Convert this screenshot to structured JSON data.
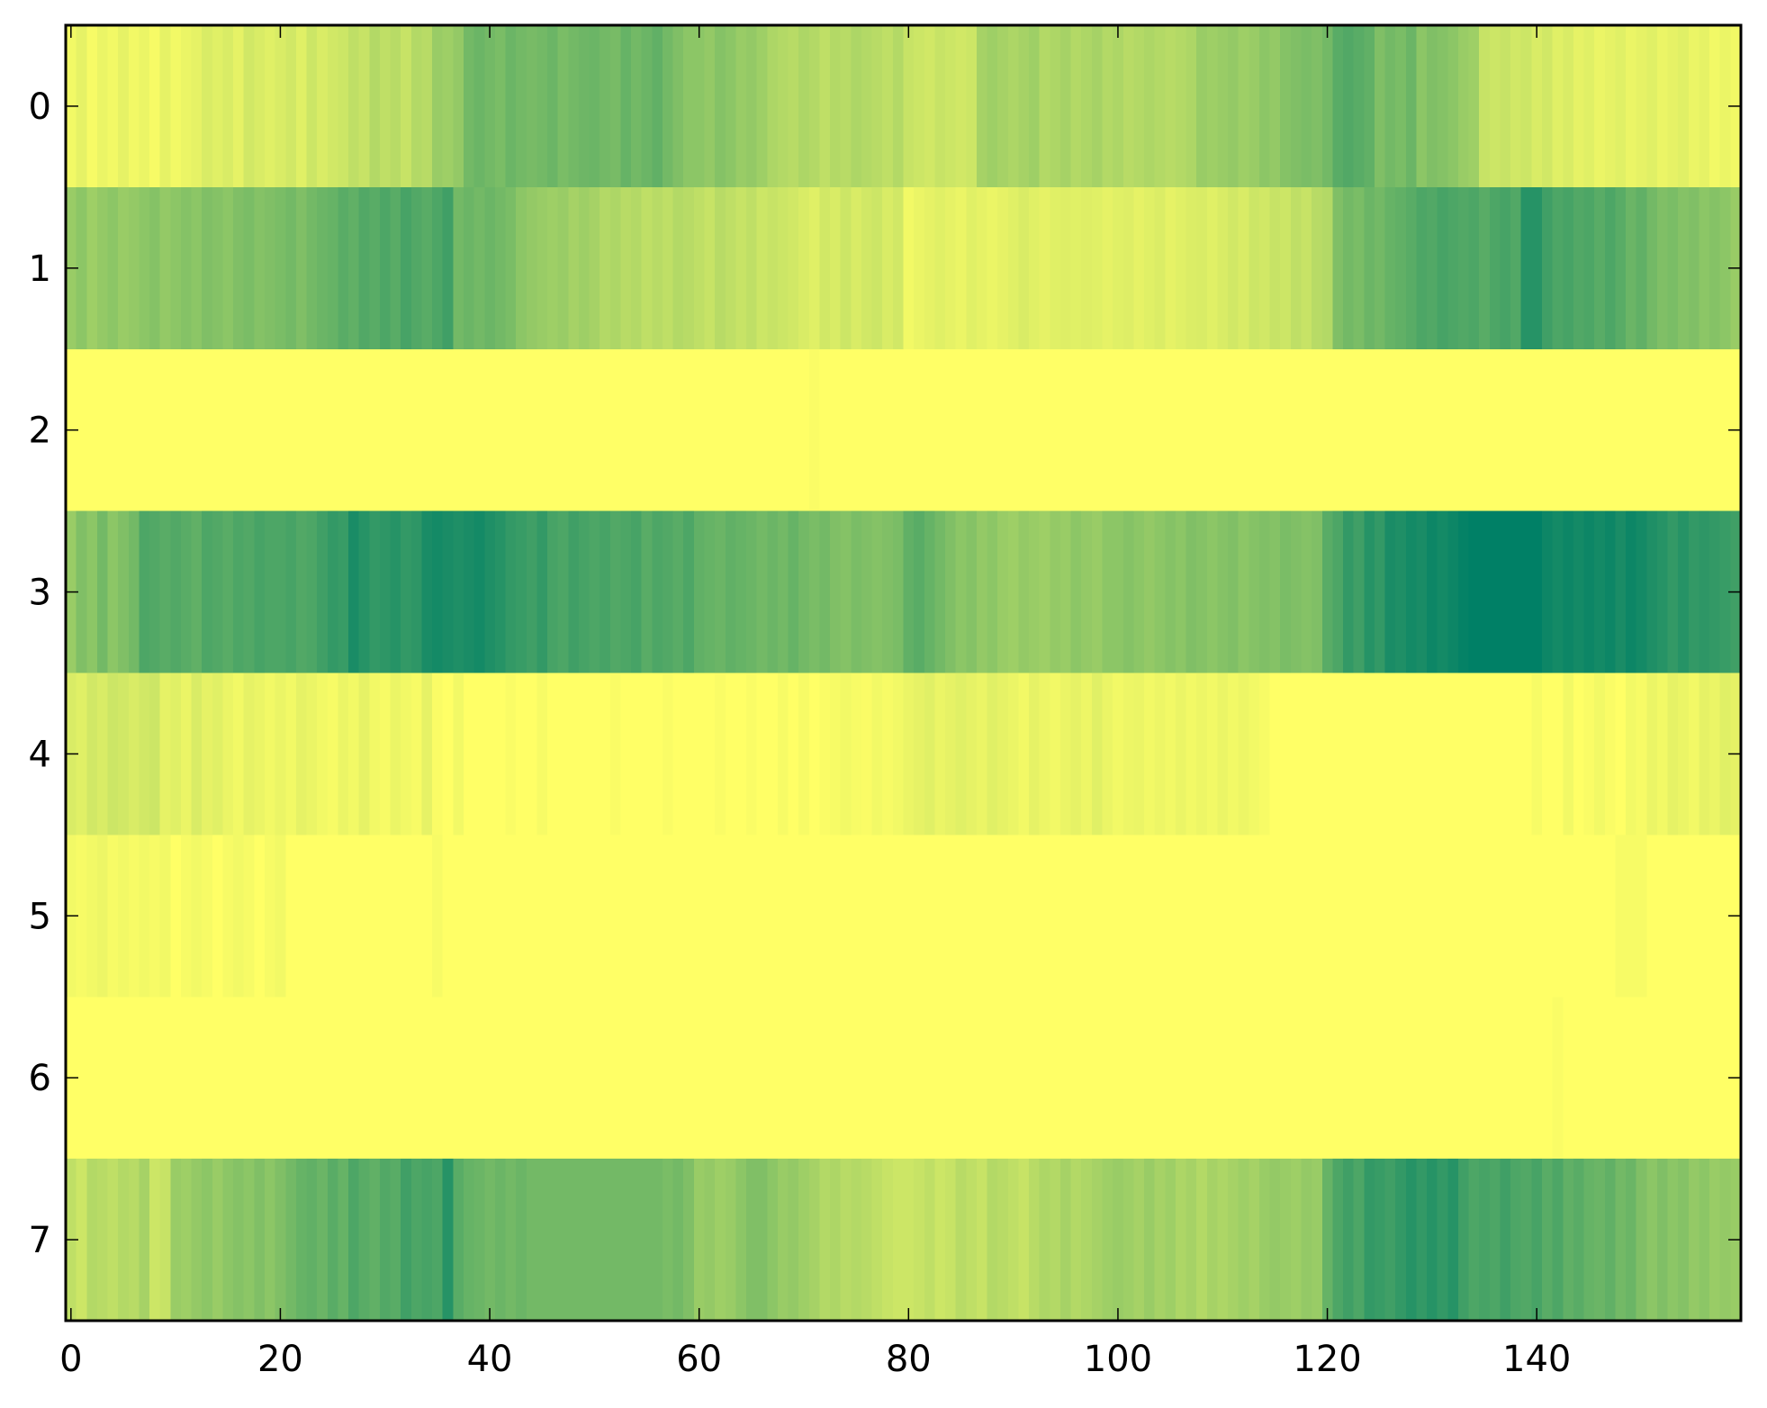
{
  "chart_data": {
    "type": "heatmap",
    "colormap": "summer",
    "color_low": "#008066",
    "color_high": "#ffff66",
    "title": "",
    "xlabel": "",
    "ylabel": "",
    "xlim": [
      -0.5,
      159.5
    ],
    "ylim": [
      7.5,
      -0.5
    ],
    "vmin": 0,
    "vmax": 1,
    "grid": false,
    "x_ticks": [
      0,
      20,
      40,
      60,
      80,
      100,
      120,
      140
    ],
    "x_tick_labels": [
      "0",
      "20",
      "40",
      "60",
      "80",
      "100",
      "120",
      "140"
    ],
    "y_ticks": [
      0,
      1,
      2,
      3,
      4,
      5,
      6,
      7
    ],
    "y_tick_labels": [
      "0",
      "1",
      "2",
      "3",
      "4",
      "5",
      "6",
      "7"
    ],
    "rows": [
      [
        0.95,
        0.9,
        0.97,
        0.92,
        0.95,
        0.9,
        0.95,
        0.92,
        0.97,
        0.9,
        0.95,
        0.92,
        0.9,
        0.85,
        0.88,
        0.85,
        0.9,
        0.82,
        0.85,
        0.88,
        0.85,
        0.82,
        0.88,
        0.8,
        0.85,
        0.82,
        0.8,
        0.75,
        0.78,
        0.7,
        0.75,
        0.72,
        0.78,
        0.7,
        0.72,
        0.6,
        0.62,
        0.58,
        0.45,
        0.42,
        0.45,
        0.48,
        0.42,
        0.45,
        0.47,
        0.45,
        0.42,
        0.48,
        0.45,
        0.43,
        0.42,
        0.45,
        0.47,
        0.4,
        0.45,
        0.42,
        0.38,
        0.45,
        0.5,
        0.55,
        0.55,
        0.58,
        0.52,
        0.55,
        0.6,
        0.58,
        0.62,
        0.68,
        0.7,
        0.72,
        0.68,
        0.7,
        0.75,
        0.7,
        0.72,
        0.68,
        0.7,
        0.72,
        0.75,
        0.7,
        0.78,
        0.8,
        0.82,
        0.78,
        0.8,
        0.82,
        0.8,
        0.65,
        0.62,
        0.65,
        0.68,
        0.65,
        0.62,
        0.7,
        0.68,
        0.65,
        0.7,
        0.68,
        0.65,
        0.7,
        0.68,
        0.72,
        0.7,
        0.68,
        0.7,
        0.72,
        0.7,
        0.68,
        0.6,
        0.62,
        0.6,
        0.58,
        0.62,
        0.6,
        0.55,
        0.58,
        0.52,
        0.5,
        0.48,
        0.5,
        0.45,
        0.35,
        0.32,
        0.35,
        0.38,
        0.5,
        0.45,
        0.48,
        0.42,
        0.55,
        0.5,
        0.52,
        0.55,
        0.6,
        0.62,
        0.78,
        0.8,
        0.78,
        0.82,
        0.8,
        0.85,
        0.82,
        0.88,
        0.85,
        0.9,
        0.88,
        0.92,
        0.9,
        0.88,
        0.92,
        0.9,
        0.88,
        0.92,
        0.9,
        0.88,
        0.92,
        0.9,
        0.95,
        0.92,
        0.95
      ],
      [
        0.6,
        0.55,
        0.62,
        0.58,
        0.55,
        0.6,
        0.58,
        0.55,
        0.52,
        0.58,
        0.55,
        0.52,
        0.55,
        0.5,
        0.52,
        0.55,
        0.5,
        0.48,
        0.52,
        0.5,
        0.48,
        0.45,
        0.5,
        0.45,
        0.42,
        0.4,
        0.35,
        0.38,
        0.32,
        0.35,
        0.3,
        0.35,
        0.28,
        0.32,
        0.35,
        0.3,
        0.25,
        0.45,
        0.42,
        0.45,
        0.42,
        0.45,
        0.48,
        0.55,
        0.58,
        0.6,
        0.62,
        0.6,
        0.65,
        0.62,
        0.65,
        0.7,
        0.68,
        0.72,
        0.7,
        0.75,
        0.72,
        0.75,
        0.7,
        0.72,
        0.75,
        0.78,
        0.72,
        0.75,
        0.78,
        0.75,
        0.8,
        0.78,
        0.8,
        0.82,
        0.85,
        0.88,
        0.82,
        0.85,
        0.8,
        0.85,
        0.82,
        0.8,
        0.85,
        0.82,
        0.95,
        0.92,
        0.9,
        0.88,
        0.9,
        0.92,
        0.88,
        0.9,
        0.92,
        0.9,
        0.88,
        0.85,
        0.88,
        0.9,
        0.88,
        0.87,
        0.88,
        0.87,
        0.88,
        0.9,
        0.88,
        0.87,
        0.9,
        0.88,
        0.86,
        0.9,
        0.88,
        0.86,
        0.85,
        0.88,
        0.85,
        0.82,
        0.85,
        0.8,
        0.82,
        0.78,
        0.8,
        0.75,
        0.78,
        0.72,
        0.7,
        0.5,
        0.45,
        0.48,
        0.42,
        0.45,
        0.4,
        0.38,
        0.35,
        0.3,
        0.32,
        0.28,
        0.3,
        0.32,
        0.3,
        0.35,
        0.3,
        0.28,
        0.32,
        0.15,
        0.15,
        0.25,
        0.3,
        0.28,
        0.32,
        0.3,
        0.35,
        0.3,
        0.35,
        0.42,
        0.38,
        0.45,
        0.5,
        0.48,
        0.52,
        0.5,
        0.55,
        0.52,
        0.55,
        0.6
      ],
      [
        1,
        1,
        1,
        1,
        1,
        1,
        1,
        1,
        1,
        1,
        1,
        1,
        1,
        1,
        1,
        1,
        1,
        1,
        1,
        1,
        1,
        1,
        1,
        1,
        1,
        1,
        1,
        1,
        1,
        1,
        1,
        1,
        1,
        1,
        1,
        1,
        1,
        1,
        1,
        1,
        1,
        1,
        1,
        1,
        1,
        1,
        1,
        1,
        1,
        1,
        1,
        1,
        1,
        1,
        1,
        1,
        1,
        1,
        1,
        1,
        1,
        1,
        1,
        1,
        1,
        1,
        1,
        1,
        1,
        1,
        1,
        0.98,
        1,
        1,
        1,
        1,
        1,
        1,
        1,
        1,
        1,
        1,
        1,
        1,
        1,
        1,
        1,
        1,
        1,
        1,
        1,
        1,
        1,
        1,
        1,
        1,
        1,
        1,
        1,
        1,
        1,
        1,
        1,
        1,
        1,
        1,
        1,
        1,
        1,
        1,
        1,
        1,
        1,
        1,
        1,
        1,
        1,
        1,
        1,
        1,
        1,
        1,
        1,
        1,
        1,
        1,
        1,
        1,
        1,
        1,
        1,
        1,
        1,
        1,
        1,
        1,
        1,
        1,
        1,
        1,
        1,
        1,
        1,
        1,
        1,
        1,
        1,
        1,
        1,
        1,
        1,
        1,
        1,
        1,
        1,
        1,
        1,
        1,
        1,
        1
      ],
      [
        0.6,
        0.5,
        0.55,
        0.45,
        0.55,
        0.5,
        0.45,
        0.3,
        0.32,
        0.35,
        0.32,
        0.35,
        0.38,
        0.3,
        0.32,
        0.35,
        0.3,
        0.32,
        0.28,
        0.3,
        0.3,
        0.28,
        0.32,
        0.3,
        0.25,
        0.2,
        0.22,
        0.1,
        0.15,
        0.2,
        0.18,
        0.15,
        0.2,
        0.18,
        0.1,
        0.08,
        0.1,
        0.12,
        0.1,
        0.08,
        0.12,
        0.15,
        0.2,
        0.22,
        0.25,
        0.2,
        0.28,
        0.3,
        0.25,
        0.28,
        0.3,
        0.28,
        0.32,
        0.3,
        0.28,
        0.35,
        0.3,
        0.32,
        0.35,
        0.3,
        0.38,
        0.4,
        0.42,
        0.38,
        0.4,
        0.42,
        0.45,
        0.42,
        0.45,
        0.4,
        0.45,
        0.48,
        0.45,
        0.5,
        0.52,
        0.48,
        0.5,
        0.52,
        0.5,
        0.48,
        0.38,
        0.35,
        0.4,
        0.45,
        0.5,
        0.55,
        0.52,
        0.58,
        0.55,
        0.6,
        0.62,
        0.58,
        0.6,
        0.62,
        0.58,
        0.6,
        0.55,
        0.58,
        0.6,
        0.55,
        0.55,
        0.52,
        0.55,
        0.58,
        0.55,
        0.52,
        0.55,
        0.5,
        0.52,
        0.55,
        0.52,
        0.5,
        0.55,
        0.52,
        0.5,
        0.52,
        0.48,
        0.5,
        0.52,
        0.5,
        0.35,
        0.3,
        0.2,
        0.25,
        0.15,
        0.2,
        0.1,
        0.12,
        0.08,
        0.1,
        0.05,
        0.08,
        0.05,
        0.02,
        0,
        0,
        0,
        0,
        0,
        0,
        0,
        0.05,
        0.08,
        0.05,
        0.08,
        0.05,
        0.08,
        0.05,
        0.1,
        0.05,
        0.08,
        0.12,
        0.15,
        0.2,
        0.15,
        0.2,
        0.18,
        0.2,
        0.22,
        0.25
      ],
      [
        0.85,
        0.88,
        0.82,
        0.85,
        0.8,
        0.82,
        0.85,
        0.82,
        0.8,
        0.9,
        0.88,
        0.92,
        0.85,
        0.9,
        0.88,
        0.92,
        0.95,
        0.9,
        0.92,
        0.95,
        0.92,
        0.95,
        0.9,
        0.92,
        0.95,
        0.97,
        0.92,
        0.95,
        0.9,
        0.95,
        0.97,
        0.92,
        0.95,
        0.97,
        0.9,
        0.98,
        1,
        0.95,
        1,
        1,
        1,
        1,
        0.98,
        1,
        1,
        0.97,
        1,
        1,
        1,
        1,
        1,
        1,
        0.98,
        1,
        1,
        1,
        1,
        0.98,
        1,
        1,
        1,
        1,
        0.98,
        1,
        1,
        0.98,
        1,
        1,
        0.97,
        1,
        0.97,
        1,
        0.98,
        0.97,
        0.95,
        0.97,
        0.98,
        0.95,
        0.97,
        0.95,
        0.92,
        0.9,
        0.88,
        0.92,
        0.9,
        0.88,
        0.9,
        0.92,
        0.88,
        0.9,
        0.92,
        0.95,
        0.9,
        0.93,
        0.95,
        0.92,
        0.9,
        0.93,
        0.88,
        0.92,
        0.95,
        0.93,
        0.92,
        0.95,
        0.93,
        0.95,
        0.92,
        0.95,
        0.93,
        0.95,
        0.92,
        0.95,
        0.93,
        0.95,
        0.97,
        1,
        1,
        1,
        1,
        1,
        1,
        1,
        1,
        1,
        1,
        1,
        1,
        1,
        1,
        1,
        1,
        1,
        1,
        1,
        1,
        1,
        1,
        1,
        1,
        1,
        0.97,
        1,
        1,
        0.95,
        1,
        0.98,
        0.95,
        0.98,
        1,
        0.95,
        0.97,
        0.92,
        0.95,
        0.9,
        0.92,
        0.95,
        0.9,
        0.92,
        0.88,
        0.9
      ],
      [
        0.95,
        0.97,
        0.95,
        0.93,
        0.97,
        0.95,
        0.97,
        0.95,
        0.97,
        0.95,
        1,
        0.97,
        0.95,
        0.97,
        1,
        0.97,
        0.95,
        0.97,
        1,
        0.97,
        0.95,
        1,
        1,
        1,
        1,
        1,
        1,
        1,
        1,
        1,
        1,
        1,
        1,
        1,
        1,
        0.97,
        1,
        1,
        1,
        1,
        1,
        1,
        1,
        1,
        1,
        1,
        1,
        1,
        1,
        1,
        1,
        1,
        1,
        1,
        1,
        1,
        1,
        1,
        1,
        1,
        1,
        1,
        1,
        1,
        1,
        1,
        1,
        1,
        1,
        1,
        1,
        1,
        1,
        1,
        1,
        1,
        1,
        1,
        1,
        1,
        1,
        1,
        1,
        1,
        1,
        1,
        1,
        1,
        1,
        1,
        1,
        1,
        1,
        1,
        1,
        1,
        1,
        1,
        1,
        1,
        1,
        1,
        1,
        1,
        1,
        1,
        1,
        1,
        1,
        1,
        1,
        1,
        1,
        1,
        1,
        1,
        1,
        1,
        1,
        1,
        1,
        1,
        1,
        1,
        1,
        1,
        1,
        1,
        1,
        1,
        1,
        1,
        1,
        1,
        1,
        1,
        1,
        1,
        1,
        1,
        1,
        1,
        1,
        1,
        1,
        1,
        1,
        1,
        0.97,
        0.97,
        0.97,
        1,
        1,
        1,
        1,
        1,
        1,
        1,
        1,
        1
      ],
      [
        1,
        1,
        1,
        1,
        1,
        1,
        1,
        1,
        1,
        1,
        1,
        1,
        1,
        1,
        1,
        1,
        1,
        1,
        1,
        1,
        1,
        1,
        1,
        1,
        1,
        1,
        1,
        1,
        1,
        1,
        1,
        1,
        1,
        1,
        1,
        1,
        1,
        1,
        1,
        1,
        1,
        1,
        1,
        1,
        1,
        1,
        1,
        1,
        1,
        1,
        1,
        1,
        1,
        1,
        1,
        1,
        1,
        1,
        1,
        1,
        1,
        1,
        1,
        1,
        1,
        1,
        1,
        1,
        1,
        1,
        1,
        1,
        1,
        1,
        1,
        1,
        1,
        1,
        1,
        1,
        1,
        1,
        1,
        1,
        1,
        1,
        1,
        1,
        1,
        1,
        1,
        1,
        1,
        1,
        1,
        1,
        1,
        1,
        1,
        1,
        1,
        1,
        1,
        1,
        1,
        1,
        1,
        1,
        1,
        1,
        1,
        1,
        1,
        1,
        1,
        1,
        1,
        1,
        1,
        1,
        1,
        1,
        1,
        1,
        1,
        1,
        1,
        1,
        1,
        1,
        1,
        1,
        1,
        1,
        1,
        1,
        1,
        1,
        1,
        1,
        1,
        1,
        0.98,
        1,
        1,
        1,
        1,
        1,
        1,
        1,
        1,
        1,
        1,
        1,
        1,
        1,
        1,
        1,
        1,
        1
      ],
      [
        0.75,
        0.8,
        0.7,
        0.72,
        0.75,
        0.7,
        0.72,
        0.65,
        0.8,
        0.78,
        0.6,
        0.62,
        0.58,
        0.55,
        0.6,
        0.55,
        0.52,
        0.55,
        0.5,
        0.55,
        0.5,
        0.45,
        0.4,
        0.38,
        0.42,
        0.35,
        0.4,
        0.3,
        0.35,
        0.38,
        0.32,
        0.35,
        0.25,
        0.3,
        0.28,
        0.3,
        0.15,
        0.35,
        0.4,
        0.42,
        0.45,
        0.42,
        0.45,
        0.42,
        0.45,
        0.45,
        0.45,
        0.45,
        0.45,
        0.45,
        0.45,
        0.45,
        0.45,
        0.45,
        0.45,
        0.45,
        0.45,
        0.48,
        0.45,
        0.5,
        0.6,
        0.58,
        0.62,
        0.6,
        0.55,
        0.5,
        0.5,
        0.55,
        0.6,
        0.58,
        0.62,
        0.65,
        0.7,
        0.68,
        0.72,
        0.7,
        0.72,
        0.75,
        0.78,
        0.8,
        0.8,
        0.78,
        0.75,
        0.8,
        0.78,
        0.72,
        0.75,
        0.78,
        0.7,
        0.72,
        0.75,
        0.78,
        0.72,
        0.68,
        0.7,
        0.65,
        0.7,
        0.68,
        0.65,
        0.62,
        0.6,
        0.62,
        0.65,
        0.6,
        0.65,
        0.62,
        0.68,
        0.65,
        0.7,
        0.65,
        0.68,
        0.65,
        0.62,
        0.65,
        0.6,
        0.58,
        0.6,
        0.62,
        0.58,
        0.6,
        0.4,
        0.3,
        0.25,
        0.3,
        0.2,
        0.22,
        0.25,
        0.2,
        0.15,
        0.2,
        0.15,
        0.2,
        0.15,
        0.25,
        0.3,
        0.28,
        0.3,
        0.25,
        0.3,
        0.32,
        0.28,
        0.35,
        0.3,
        0.38,
        0.35,
        0.4,
        0.42,
        0.38,
        0.45,
        0.42,
        0.5,
        0.55,
        0.5,
        0.55,
        0.52,
        0.58,
        0.55,
        0.6,
        0.58,
        0.6
      ]
    ]
  }
}
